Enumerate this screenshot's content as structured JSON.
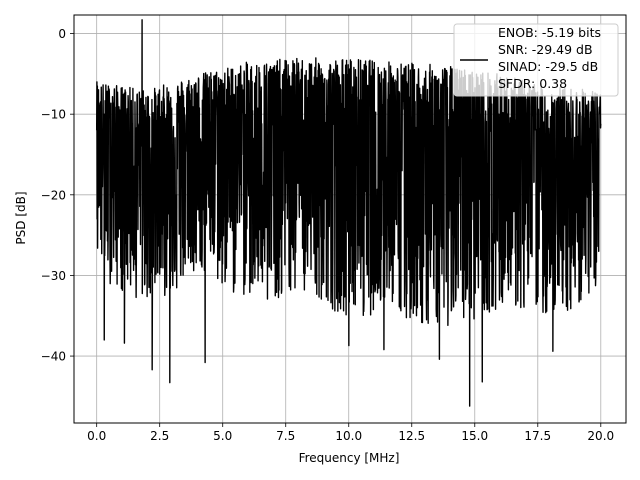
{
  "chart_data": {
    "type": "line",
    "xlabel": "Frequency [MHz]",
    "ylabel": "PSD [dB]",
    "xlim": [
      -0.9,
      21.0
    ],
    "ylim": [
      -48.3,
      2.3
    ],
    "xticks": [
      0.0,
      2.5,
      5.0,
      7.5,
      10.0,
      12.5,
      15.0,
      17.5,
      20.0
    ],
    "xtick_labels": [
      "0.0",
      "2.5",
      "5.0",
      "7.5",
      "10.0",
      "12.5",
      "15.0",
      "17.5",
      "20.0"
    ],
    "yticks": [
      0,
      -10,
      -20,
      -30,
      -40
    ],
    "ytick_labels": [
      "0",
      "−10",
      "−20",
      "−30",
      "−40"
    ],
    "grid": true,
    "legend_position": "top-right",
    "legend": {
      "lines": [
        "ENOB: -5.19 bits",
        "SNR: -29.49 dB",
        "SINAD: -29.5 dB",
        "SFDR: 0.38"
      ]
    },
    "series": [
      {
        "color": "#000000",
        "x_range": [
          0.0,
          20.0
        ],
        "description_values": {
          "upper_envelope_by_MHz": [
            [
              0,
              -6
            ],
            [
              2,
              -7
            ],
            [
              4,
              -5
            ],
            [
              6,
              -3.5
            ],
            [
              8,
              -3
            ],
            [
              10,
              -3
            ],
            [
              12,
              -3.5
            ],
            [
              14,
              -4
            ],
            [
              16,
              -5
            ],
            [
              18,
              -6.5
            ],
            [
              20,
              -7
            ]
          ],
          "lower_envelope_by_MHz": [
            [
              0,
              -30
            ],
            [
              2,
              -34
            ],
            [
              4,
              -30
            ],
            [
              6,
              -33
            ],
            [
              8,
              -33
            ],
            [
              10,
              -35
            ],
            [
              12,
              -35
            ],
            [
              14,
              -37
            ],
            [
              16,
              -34
            ],
            [
              18,
              -35
            ],
            [
              20,
              -33
            ]
          ],
          "notable_minima": [
            [
              2.2,
              -41.7
            ],
            [
              2.9,
              -43.3
            ],
            [
              4.3,
              -40.8
            ],
            [
              10.0,
              -38.7
            ],
            [
              11.4,
              -39.2
            ],
            [
              13.6,
              -40.4
            ],
            [
              14.8,
              -46.2
            ],
            [
              15.3,
              -43.2
            ],
            [
              18.1,
              -39.4
            ],
            [
              1.1,
              -38.4
            ],
            [
              0.3,
              -38.0
            ]
          ],
          "peak": [
            1.8,
            1.7
          ]
        }
      }
    ]
  }
}
